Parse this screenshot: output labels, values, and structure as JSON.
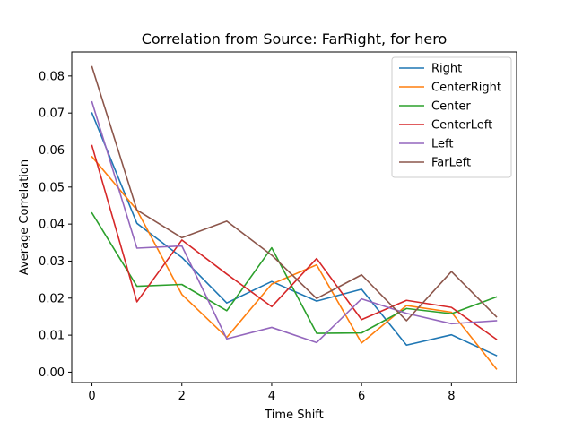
{
  "chart_data": {
    "type": "line",
    "title": "Correlation from Source: FarRight, for hero",
    "xlabel": "Time Shift",
    "ylabel": "Average Correlation",
    "x": [
      0,
      1,
      2,
      3,
      4,
      5,
      6,
      7,
      8,
      9
    ],
    "xlim": [
      -0.45,
      9.45
    ],
    "ylim": [
      -0.0028,
      0.0865
    ],
    "xticks": [
      0,
      2,
      4,
      6,
      8
    ],
    "yticks": [
      0.0,
      0.01,
      0.02,
      0.03,
      0.04,
      0.05,
      0.06,
      0.07,
      0.08
    ],
    "ytick_labels": [
      "0.00",
      "0.01",
      "0.02",
      "0.03",
      "0.04",
      "0.05",
      "0.06",
      "0.07",
      "0.08"
    ],
    "grid": false,
    "legend_position": "top-right",
    "series": [
      {
        "name": "Right",
        "color": "#1f77b4",
        "values": [
          0.07,
          0.0402,
          0.031,
          0.0187,
          0.0245,
          0.0192,
          0.0224,
          0.0073,
          0.0101,
          0.0045
        ]
      },
      {
        "name": "CenterRight",
        "color": "#ff7f0e",
        "values": [
          0.0582,
          0.0438,
          0.021,
          0.0094,
          0.0238,
          0.029,
          0.0079,
          0.018,
          0.0162,
          0.0009
        ]
      },
      {
        "name": "Center",
        "color": "#2ca02c",
        "values": [
          0.043,
          0.0232,
          0.0237,
          0.0166,
          0.0336,
          0.0105,
          0.0106,
          0.0172,
          0.0158,
          0.0203
        ]
      },
      {
        "name": "CenterLeft",
        "color": "#d62728",
        "values": [
          0.0612,
          0.019,
          0.0357,
          0.0265,
          0.0177,
          0.0307,
          0.0142,
          0.0194,
          0.0175,
          0.0089
        ]
      },
      {
        "name": "Left",
        "color": "#9467bd",
        "values": [
          0.073,
          0.0335,
          0.0341,
          0.009,
          0.0121,
          0.008,
          0.0198,
          0.0159,
          0.0131,
          0.0139
        ]
      },
      {
        "name": "FarLeft",
        "color": "#8c564b",
        "values": [
          0.0825,
          0.0438,
          0.0363,
          0.0408,
          0.0316,
          0.0199,
          0.0263,
          0.0139,
          0.0272,
          0.015
        ]
      }
    ]
  }
}
